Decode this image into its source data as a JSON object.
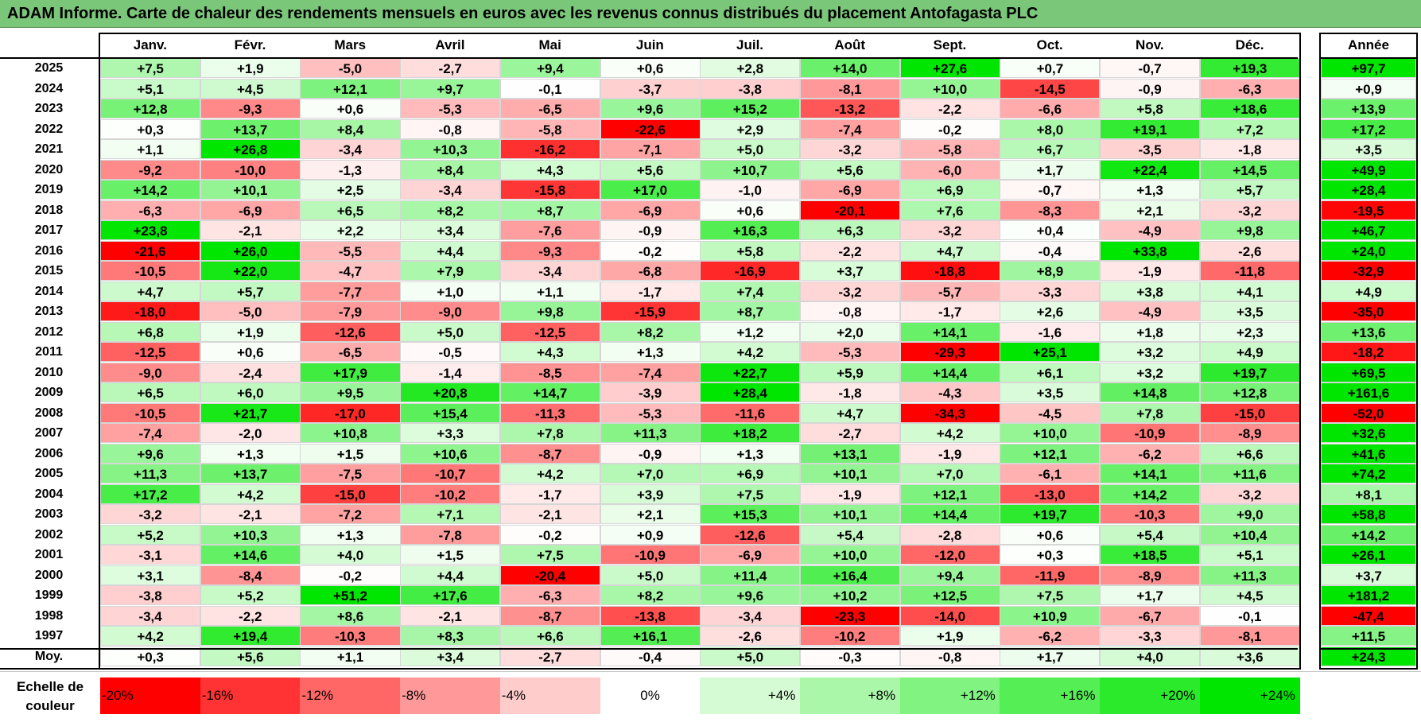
{
  "title": "ADAM Informe. Carte de chaleur des rendements mensuels en euros avec les revenus connus distribués du placement Antofagasta PLC",
  "months": [
    "Janv.",
    "Févr.",
    "Mars",
    "Avril",
    "Mai",
    "Juin",
    "Juil.",
    "Août",
    "Sept.",
    "Oct.",
    "Nov.",
    "Déc."
  ],
  "year_header": "Année",
  "avg_label": "Moy.",
  "legend_label": "Echelle de couleur",
  "colors": {
    "negative": "#ff0000",
    "neutral": "#ffffff",
    "positive": "#00e600",
    "title_bar": "#7ac77a"
  },
  "chart_data": {
    "type": "heatmap",
    "title": "ADAM Informe. Carte de chaleur des rendements mensuels en euros avec les revenus connus distribués du placement Antofagasta PLC",
    "columns": [
      "Janv.",
      "Févr.",
      "Mars",
      "Avril",
      "Mai",
      "Juin",
      "Juil.",
      "Août",
      "Sept.",
      "Oct.",
      "Nov.",
      "Déc."
    ],
    "rows": [
      {
        "year": "2025",
        "values": [
          "+7,5",
          "+1,9",
          "-5,0",
          "-2,7",
          "+9,4",
          "+0,6",
          "+2,8",
          "+14,0",
          "+27,6",
          "+0,7",
          "-0,7",
          "+19,3"
        ],
        "annual": "+97,7"
      },
      {
        "year": "2024",
        "values": [
          "+5,1",
          "+4,5",
          "+12,1",
          "+9,7",
          "-0,1",
          "-3,7",
          "-3,8",
          "-8,1",
          "+10,0",
          "-14,5",
          "-0,9",
          "-6,3"
        ],
        "annual": "+0,9"
      },
      {
        "year": "2023",
        "values": [
          "+12,8",
          "-9,3",
          "+0,6",
          "-5,3",
          "-6,5",
          "+9,6",
          "+15,2",
          "-13,2",
          "-2,2",
          "-6,6",
          "+5,8",
          "+18,6"
        ],
        "annual": "+13,9"
      },
      {
        "year": "2022",
        "values": [
          "+0,3",
          "+13,7",
          "+8,4",
          "-0,8",
          "-5,8",
          "-22,6",
          "+2,9",
          "-7,4",
          "-0,2",
          "+8,0",
          "+19,1",
          "+7,2"
        ],
        "annual": "+17,2"
      },
      {
        "year": "2021",
        "values": [
          "+1,1",
          "+26,8",
          "-3,4",
          "+10,3",
          "-16,2",
          "-7,1",
          "+5,0",
          "-3,2",
          "-5,8",
          "+6,7",
          "-3,5",
          "-1,8"
        ],
        "annual": "+3,5"
      },
      {
        "year": "2020",
        "values": [
          "-9,2",
          "-10,0",
          "-1,3",
          "+8,4",
          "+4,3",
          "+5,6",
          "+10,7",
          "+5,6",
          "-6,0",
          "+1,7",
          "+22,4",
          "+14,5"
        ],
        "annual": "+49,9"
      },
      {
        "year": "2019",
        "values": [
          "+14,2",
          "+10,1",
          "+2,5",
          "-3,4",
          "-15,8",
          "+17,0",
          "-1,0",
          "-6,9",
          "+6,9",
          "-0,7",
          "+1,3",
          "+5,7"
        ],
        "annual": "+28,4"
      },
      {
        "year": "2018",
        "values": [
          "-6,3",
          "-6,9",
          "+6,5",
          "+8,2",
          "+8,7",
          "-6,9",
          "+0,6",
          "-20,1",
          "+7,6",
          "-8,3",
          "+2,1",
          "-3,2"
        ],
        "annual": "-19,5"
      },
      {
        "year": "2017",
        "values": [
          "+23,8",
          "-2,1",
          "+2,2",
          "+3,4",
          "-7,6",
          "-0,9",
          "+16,3",
          "+6,3",
          "-3,2",
          "+0,4",
          "-4,9",
          "+9,8"
        ],
        "annual": "+46,7"
      },
      {
        "year": "2016",
        "values": [
          "-21,6",
          "+26,0",
          "-5,5",
          "+4,4",
          "-9,3",
          "-0,2",
          "+5,8",
          "-2,2",
          "+4,7",
          "-0,4",
          "+33,8",
          "-2,6"
        ],
        "annual": "+24,0"
      },
      {
        "year": "2015",
        "values": [
          "-10,5",
          "+22,0",
          "-4,7",
          "+7,9",
          "-3,4",
          "-6,8",
          "-16,9",
          "+3,7",
          "-18,8",
          "+8,9",
          "-1,9",
          "-11,8"
        ],
        "annual": "-32,9"
      },
      {
        "year": "2014",
        "values": [
          "+4,7",
          "+5,7",
          "-7,7",
          "+1,0",
          "+1,1",
          "-1,7",
          "+7,4",
          "-3,2",
          "-5,7",
          "-3,3",
          "+3,8",
          "+4,1"
        ],
        "annual": "+4,9"
      },
      {
        "year": "2013",
        "values": [
          "-18,0",
          "-5,0",
          "-7,9",
          "-9,0",
          "+9,8",
          "-15,9",
          "+8,7",
          "-0,8",
          "-1,7",
          "+2,6",
          "-4,9",
          "+3,5"
        ],
        "annual": "-35,0"
      },
      {
        "year": "2012",
        "values": [
          "+6,8",
          "+1,9",
          "-12,6",
          "+5,0",
          "-12,5",
          "+8,2",
          "+1,2",
          "+2,0",
          "+14,1",
          "-1,6",
          "+1,8",
          "+2,3"
        ],
        "annual": "+13,6"
      },
      {
        "year": "2011",
        "values": [
          "-12,5",
          "+0,6",
          "-6,5",
          "-0,5",
          "+4,3",
          "+1,3",
          "+4,2",
          "-5,3",
          "-29,3",
          "+25,1",
          "+3,2",
          "+4,9"
        ],
        "annual": "-18,2"
      },
      {
        "year": "2010",
        "values": [
          "-9,0",
          "-2,4",
          "+17,9",
          "-1,4",
          "-8,5",
          "-7,4",
          "+22,7",
          "+5,9",
          "+14,4",
          "+6,1",
          "+3,2",
          "+19,7"
        ],
        "annual": "+69,5"
      },
      {
        "year": "2009",
        "values": [
          "+6,5",
          "+6,0",
          "+9,5",
          "+20,8",
          "+14,7",
          "-3,9",
          "+28,4",
          "-1,8",
          "-4,3",
          "+3,5",
          "+14,8",
          "+12,8"
        ],
        "annual": "+161,6"
      },
      {
        "year": "2008",
        "values": [
          "-10,5",
          "+21,7",
          "-17,0",
          "+15,4",
          "-11,3",
          "-5,3",
          "-11,6",
          "+4,7",
          "-34,3",
          "-4,5",
          "+7,8",
          "-15,0"
        ],
        "annual": "-52,0"
      },
      {
        "year": "2007",
        "values": [
          "-7,4",
          "-2,0",
          "+10,8",
          "+3,3",
          "+7,8",
          "+11,3",
          "+18,2",
          "-2,7",
          "+4,2",
          "+10,0",
          "-10,9",
          "-8,9"
        ],
        "annual": "+32,6"
      },
      {
        "year": "2006",
        "values": [
          "+9,6",
          "+1,3",
          "+1,5",
          "+10,6",
          "-8,7",
          "-0,9",
          "+1,3",
          "+13,1",
          "-1,9",
          "+12,1",
          "-6,2",
          "+6,6"
        ],
        "annual": "+41,6"
      },
      {
        "year": "2005",
        "values": [
          "+11,3",
          "+13,7",
          "-7,5",
          "-10,7",
          "+4,2",
          "+7,0",
          "+6,9",
          "+10,1",
          "+7,0",
          "-6,1",
          "+14,1",
          "+11,6"
        ],
        "annual": "+74,2"
      },
      {
        "year": "2004",
        "values": [
          "+17,2",
          "+4,2",
          "-15,0",
          "-10,2",
          "-1,7",
          "+3,9",
          "+7,5",
          "-1,9",
          "+12,1",
          "-13,0",
          "+14,2",
          "-3,2"
        ],
        "annual": "+8,1"
      },
      {
        "year": "2003",
        "values": [
          "-3,2",
          "-2,1",
          "-7,2",
          "+7,1",
          "-2,1",
          "+2,1",
          "+15,3",
          "+10,1",
          "+14,4",
          "+19,7",
          "-10,3",
          "+9,0"
        ],
        "annual": "+58,8"
      },
      {
        "year": "2002",
        "values": [
          "+5,2",
          "+10,3",
          "+1,3",
          "-7,8",
          "-0,2",
          "+0,9",
          "-12,6",
          "+5,4",
          "-2,8",
          "+0,6",
          "+5,4",
          "+10,4"
        ],
        "annual": "+14,2"
      },
      {
        "year": "2001",
        "values": [
          "-3,1",
          "+14,6",
          "+4,0",
          "+1,5",
          "+7,5",
          "-10,9",
          "-6,9",
          "+10,0",
          "-12,0",
          "+0,3",
          "+18,5",
          "+5,1"
        ],
        "annual": "+26,1"
      },
      {
        "year": "2000",
        "values": [
          "+3,1",
          "-8,4",
          "-0,2",
          "+4,4",
          "-20,4",
          "+5,0",
          "+11,4",
          "+16,4",
          "+9,4",
          "-11,9",
          "-8,9",
          "+11,3"
        ],
        "annual": "+3,7"
      },
      {
        "year": "1999",
        "values": [
          "-3,8",
          "+5,2",
          "+51,2",
          "+17,6",
          "-6,3",
          "+8,2",
          "+9,6",
          "+10,2",
          "+12,5",
          "+7,5",
          "+1,7",
          "+4,5"
        ],
        "annual": "+181,2"
      },
      {
        "year": "1998",
        "values": [
          "-3,4",
          "-2,2",
          "+8,6",
          "-2,1",
          "-8,7",
          "-13,8",
          "-3,4",
          "-23,3",
          "-14,0",
          "+10,9",
          "-6,7",
          "-0,1"
        ],
        "annual": "-47,4"
      },
      {
        "year": "1997",
        "values": [
          "+4,2",
          "+19,4",
          "-10,3",
          "+8,3",
          "+6,6",
          "+16,1",
          "-2,6",
          "-10,2",
          "+1,9",
          "-6,2",
          "-3,3",
          "-8,1"
        ],
        "annual": "+11,5"
      }
    ],
    "averages": {
      "values": [
        "+0,3",
        "+5,6",
        "+1,1",
        "+3,4",
        "-2,7",
        "-0,4",
        "+5,0",
        "-0,3",
        "-0,8",
        "+1,7",
        "+4,0",
        "+3,6"
      ],
      "annual": "+24,3"
    },
    "color_scale": {
      "labels": [
        "-20%",
        "-16%",
        "-12%",
        "-8%",
        "-4%",
        "0%",
        "+4%",
        "+8%",
        "+12%",
        "+16%",
        "+20%",
        "+24%"
      ],
      "values": [
        -20,
        -16,
        -12,
        -8,
        -4,
        0,
        4,
        8,
        12,
        16,
        20,
        24
      ]
    }
  }
}
